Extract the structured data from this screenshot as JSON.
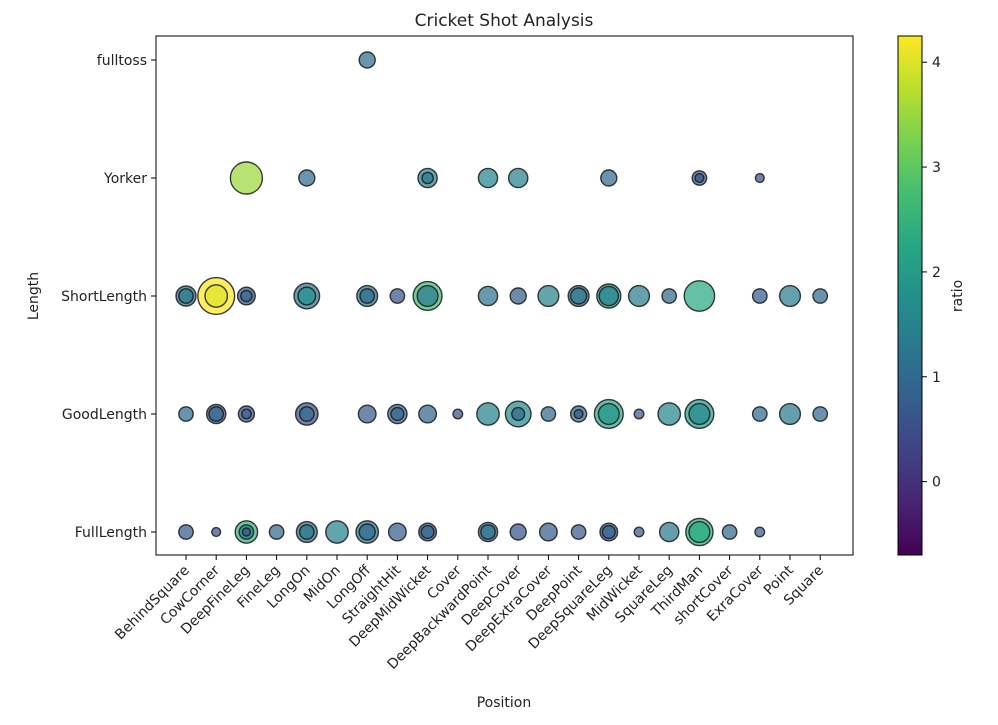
{
  "chart_data": {
    "type": "scatter",
    "title": "Cricket Shot Analysis",
    "xlabel": "Position",
    "ylabel": "Length",
    "x_categories": [
      "BehindSquare",
      "CowCorner",
      "DeepFineLeg",
      "FineLeg",
      "LongOn",
      "MidOn",
      "LongOff",
      "StraightHit",
      "DeepMidWicket",
      "Cover",
      "DeepBackwardPoint",
      "DeepCover",
      "DeepExtraCover",
      "DeepPoint",
      "DeepSquareLeg",
      "MidWicket",
      "SquareLeg",
      "ThirdMan",
      "shortCover",
      "ExraCover",
      "Point",
      "Square"
    ],
    "y_categories": [
      "FullLength",
      "GoodLength",
      "ShortLength",
      "Yorker",
      "fulltoss"
    ],
    "colorbar": {
      "label": "ratio",
      "range": [
        -0.7,
        4.25
      ],
      "ticks": [
        "0",
        "1",
        "2",
        "3",
        "4"
      ],
      "colormap": "viridis"
    },
    "grid": false,
    "points": [
      {
        "x": "LongOff",
        "y": "fulltoss",
        "ratio": 1.1,
        "size": 1.0
      },
      {
        "x": "DeepFineLeg",
        "y": "Yorker",
        "ratio": 3.5,
        "size": 2.0
      },
      {
        "x": "LongOn",
        "y": "Yorker",
        "ratio": 1.1,
        "size": 1.0
      },
      {
        "x": "DeepMidWicket",
        "y": "Yorker",
        "ratio": 1.5,
        "size": 1.2
      },
      {
        "x": "DeepMidWicket",
        "y": "Yorker",
        "ratio": 1.3,
        "size": 0.7
      },
      {
        "x": "DeepBackwardPoint",
        "y": "Yorker",
        "ratio": 1.5,
        "size": 1.2
      },
      {
        "x": "DeepCover",
        "y": "Yorker",
        "ratio": 1.5,
        "size": 1.2
      },
      {
        "x": "DeepSquareLeg",
        "y": "Yorker",
        "ratio": 1.0,
        "size": 1.0
      },
      {
        "x": "ThirdMan",
        "y": "Yorker",
        "ratio": 0.9,
        "size": 0.9
      },
      {
        "x": "ThirdMan",
        "y": "Yorker",
        "ratio": 0.5,
        "size": 0.55
      },
      {
        "x": "ExraCover",
        "y": "Yorker",
        "ratio": 0.5,
        "size": 0.55
      },
      {
        "x": "BehindSquare",
        "y": "ShortLength",
        "ratio": 1.1,
        "size": 1.25
      },
      {
        "x": "BehindSquare",
        "y": "ShortLength",
        "ratio": 1.3,
        "size": 0.9
      },
      {
        "x": "CowCorner",
        "y": "ShortLength",
        "ratio": 4.25,
        "size": 2.3
      },
      {
        "x": "CowCorner",
        "y": "ShortLength",
        "ratio": 4.0,
        "size": 1.4
      },
      {
        "x": "DeepFineLeg",
        "y": "ShortLength",
        "ratio": 0.6,
        "size": 1.1
      },
      {
        "x": "DeepFineLeg",
        "y": "ShortLength",
        "ratio": 1.0,
        "size": 0.7
      },
      {
        "x": "LongOn",
        "y": "ShortLength",
        "ratio": 1.2,
        "size": 1.6
      },
      {
        "x": "LongOn",
        "y": "ShortLength",
        "ratio": 1.8,
        "size": 1.1
      },
      {
        "x": "LongOff",
        "y": "ShortLength",
        "ratio": 1.2,
        "size": 1.3
      },
      {
        "x": "LongOff",
        "y": "ShortLength",
        "ratio": 1.0,
        "size": 0.9
      },
      {
        "x": "StraightHit",
        "y": "ShortLength",
        "ratio": 0.6,
        "size": 0.9
      },
      {
        "x": "DeepMidWicket",
        "y": "ShortLength",
        "ratio": 2.7,
        "size": 1.8
      },
      {
        "x": "DeepMidWicket",
        "y": "ShortLength",
        "ratio": 1.3,
        "size": 1.3
      },
      {
        "x": "DeepBackwardPoint",
        "y": "ShortLength",
        "ratio": 1.2,
        "size": 1.2
      },
      {
        "x": "DeepCover",
        "y": "ShortLength",
        "ratio": 0.8,
        "size": 1.0
      },
      {
        "x": "DeepExtraCover",
        "y": "ShortLength",
        "ratio": 1.5,
        "size": 1.3
      },
      {
        "x": "DeepPoint",
        "y": "ShortLength",
        "ratio": 0.9,
        "size": 1.3
      },
      {
        "x": "DeepPoint",
        "y": "ShortLength",
        "ratio": 1.4,
        "size": 1.0
      },
      {
        "x": "DeepSquareLeg",
        "y": "ShortLength",
        "ratio": 1.9,
        "size": 1.5
      },
      {
        "x": "DeepSquareLeg",
        "y": "ShortLength",
        "ratio": 1.5,
        "size": 1.2
      },
      {
        "x": "MidWicket",
        "y": "ShortLength",
        "ratio": 1.4,
        "size": 1.3
      },
      {
        "x": "SquareLeg",
        "y": "ShortLength",
        "ratio": 1.0,
        "size": 0.9
      },
      {
        "x": "ThirdMan",
        "y": "ShortLength",
        "ratio": 2.3,
        "size": 1.9
      },
      {
        "x": "ExraCover",
        "y": "ShortLength",
        "ratio": 0.8,
        "size": 0.9
      },
      {
        "x": "Point",
        "y": "ShortLength",
        "ratio": 1.4,
        "size": 1.3
      },
      {
        "x": "Square",
        "y": "ShortLength",
        "ratio": 1.0,
        "size": 0.9
      },
      {
        "x": "BehindSquare",
        "y": "GoodLength",
        "ratio": 1.0,
        "size": 0.9
      },
      {
        "x": "CowCorner",
        "y": "GoodLength",
        "ratio": 0.6,
        "size": 1.2
      },
      {
        "x": "CowCorner",
        "y": "GoodLength",
        "ratio": 0.9,
        "size": 0.9
      },
      {
        "x": "DeepFineLeg",
        "y": "GoodLength",
        "ratio": 0.6,
        "size": 1.0
      },
      {
        "x": "DeepFineLeg",
        "y": "GoodLength",
        "ratio": 0.8,
        "size": 0.6
      },
      {
        "x": "LongOn",
        "y": "GoodLength",
        "ratio": 0.5,
        "size": 1.4
      },
      {
        "x": "LongOn",
        "y": "GoodLength",
        "ratio": 1.0,
        "size": 0.9
      },
      {
        "x": "LongOff",
        "y": "GoodLength",
        "ratio": 0.7,
        "size": 1.1
      },
      {
        "x": "StraightHit",
        "y": "GoodLength",
        "ratio": 0.8,
        "size": 1.2
      },
      {
        "x": "StraightHit",
        "y": "GoodLength",
        "ratio": 1.0,
        "size": 0.8
      },
      {
        "x": "DeepMidWicket",
        "y": "GoodLength",
        "ratio": 0.9,
        "size": 1.1
      },
      {
        "x": "Cover",
        "y": "GoodLength",
        "ratio": 0.6,
        "size": 0.6
      },
      {
        "x": "DeepBackwardPoint",
        "y": "GoodLength",
        "ratio": 1.5,
        "size": 1.4
      },
      {
        "x": "DeepCover",
        "y": "GoodLength",
        "ratio": 1.7,
        "size": 1.6
      },
      {
        "x": "DeepCover",
        "y": "GoodLength",
        "ratio": 1.0,
        "size": 0.8
      },
      {
        "x": "DeepExtraCover",
        "y": "GoodLength",
        "ratio": 1.0,
        "size": 0.9
      },
      {
        "x": "DeepPoint",
        "y": "GoodLength",
        "ratio": 1.0,
        "size": 1.0
      },
      {
        "x": "DeepPoint",
        "y": "GoodLength",
        "ratio": 0.6,
        "size": 0.55
      },
      {
        "x": "DeepSquareLeg",
        "y": "GoodLength",
        "ratio": 2.3,
        "size": 1.8
      },
      {
        "x": "DeepSquareLeg",
        "y": "GoodLength",
        "ratio": 1.8,
        "size": 1.3
      },
      {
        "x": "MidWicket",
        "y": "GoodLength",
        "ratio": 0.7,
        "size": 0.6
      },
      {
        "x": "SquareLeg",
        "y": "GoodLength",
        "ratio": 1.6,
        "size": 1.4
      },
      {
        "x": "ThirdMan",
        "y": "GoodLength",
        "ratio": 2.0,
        "size": 1.8
      },
      {
        "x": "ThirdMan",
        "y": "GoodLength",
        "ratio": 1.6,
        "size": 1.3
      },
      {
        "x": "ExraCover",
        "y": "GoodLength",
        "ratio": 1.0,
        "size": 0.9
      },
      {
        "x": "Point",
        "y": "GoodLength",
        "ratio": 1.3,
        "size": 1.3
      },
      {
        "x": "Square",
        "y": "GoodLength",
        "ratio": 1.0,
        "size": 0.9
      },
      {
        "x": "BehindSquare",
        "y": "FullLength",
        "ratio": 0.7,
        "size": 0.9
      },
      {
        "x": "CowCorner",
        "y": "FullLength",
        "ratio": 0.6,
        "size": 0.55
      },
      {
        "x": "DeepFineLeg",
        "y": "FullLength",
        "ratio": 2.5,
        "size": 1.4
      },
      {
        "x": "DeepFineLeg",
        "y": "FullLength",
        "ratio": 1.5,
        "size": 0.9
      },
      {
        "x": "DeepFineLeg",
        "y": "FullLength",
        "ratio": 0.5,
        "size": 0.5
      },
      {
        "x": "FineLeg",
        "y": "FullLength",
        "ratio": 1.0,
        "size": 0.9
      },
      {
        "x": "LongOn",
        "y": "FullLength",
        "ratio": 1.1,
        "size": 1.3
      },
      {
        "x": "LongOn",
        "y": "FullLength",
        "ratio": 1.3,
        "size": 0.9
      },
      {
        "x": "MidOn",
        "y": "FullLength",
        "ratio": 1.5,
        "size": 1.4
      },
      {
        "x": "LongOff",
        "y": "FullLength",
        "ratio": 1.3,
        "size": 1.4
      },
      {
        "x": "LongOff",
        "y": "FullLength",
        "ratio": 1.0,
        "size": 1.0
      },
      {
        "x": "StraightHit",
        "y": "FullLength",
        "ratio": 0.8,
        "size": 1.1
      },
      {
        "x": "DeepMidWicket",
        "y": "FullLength",
        "ratio": 0.6,
        "size": 1.1
      },
      {
        "x": "DeepMidWicket",
        "y": "FullLength",
        "ratio": 1.0,
        "size": 0.8
      },
      {
        "x": "DeepBackwardPoint",
        "y": "FullLength",
        "ratio": 0.9,
        "size": 1.2
      },
      {
        "x": "DeepBackwardPoint",
        "y": "FullLength",
        "ratio": 1.3,
        "size": 0.9
      },
      {
        "x": "DeepCover",
        "y": "FullLength",
        "ratio": 0.6,
        "size": 1.0
      },
      {
        "x": "DeepExtraCover",
        "y": "FullLength",
        "ratio": 0.8,
        "size": 1.1
      },
      {
        "x": "DeepPoint",
        "y": "FullLength",
        "ratio": 0.7,
        "size": 0.9
      },
      {
        "x": "DeepSquareLeg",
        "y": "FullLength",
        "ratio": 0.6,
        "size": 1.1
      },
      {
        "x": "DeepSquareLeg",
        "y": "FullLength",
        "ratio": 0.9,
        "size": 0.8
      },
      {
        "x": "MidWicket",
        "y": "FullLength",
        "ratio": 0.7,
        "size": 0.6
      },
      {
        "x": "SquareLeg",
        "y": "FullLength",
        "ratio": 1.3,
        "size": 1.2
      },
      {
        "x": "ThirdMan",
        "y": "FullLength",
        "ratio": 2.5,
        "size": 1.7
      },
      {
        "x": "ThirdMan",
        "y": "FullLength",
        "ratio": 2.3,
        "size": 1.3
      },
      {
        "x": "shortCover",
        "y": "FullLength",
        "ratio": 1.0,
        "size": 0.9
      },
      {
        "x": "ExraCover",
        "y": "FullLength",
        "ratio": 0.8,
        "size": 0.6
      }
    ]
  }
}
